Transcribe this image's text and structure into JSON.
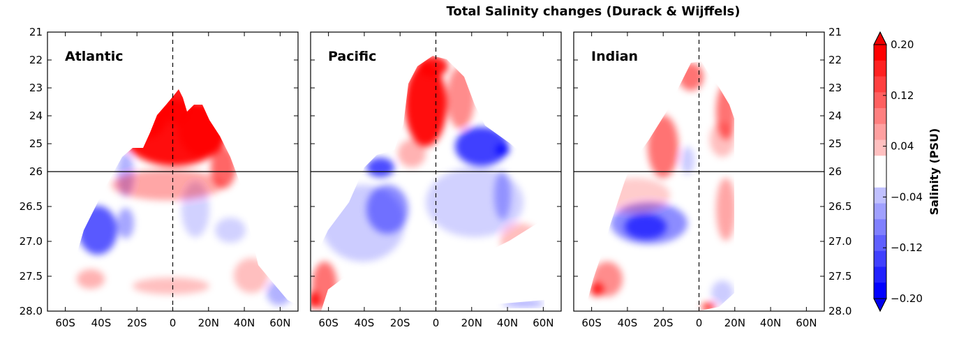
{
  "chart_data": {
    "type": "heatmap",
    "title": "Total Salinity changes (Durack & Wijffels)",
    "panels": [
      {
        "name": "Atlantic"
      },
      {
        "name": "Pacific"
      },
      {
        "name": "Indian"
      }
    ],
    "x_ticks": [
      "60S",
      "40S",
      "20S",
      "0",
      "20N",
      "40N",
      "60N"
    ],
    "x_tick_values": [
      -60,
      -40,
      -20,
      0,
      20,
      40,
      60
    ],
    "xlim": [
      -70,
      70
    ],
    "y_ticks_upper": [
      "21",
      "22",
      "23",
      "24",
      "25",
      "26"
    ],
    "y_ticks_lower": [
      "26.5",
      "27.0",
      "27.5",
      "28.0"
    ],
    "y_split": 26,
    "reference_lines": {
      "vertical_x": 0,
      "horizontal_y": 26
    },
    "colorbar": {
      "label": "Salinity (PSU)",
      "ticks": [
        "0.20",
        "0.12",
        "0.04",
        "−0.04",
        "−0.12",
        "−0.20"
      ],
      "range": [
        -0.2,
        0.2
      ],
      "levels": 16,
      "colors": {
        "positive": "#ff0000",
        "neutral": "#ffffff",
        "negative": "#0000ff"
      },
      "extend": "both"
    }
  }
}
